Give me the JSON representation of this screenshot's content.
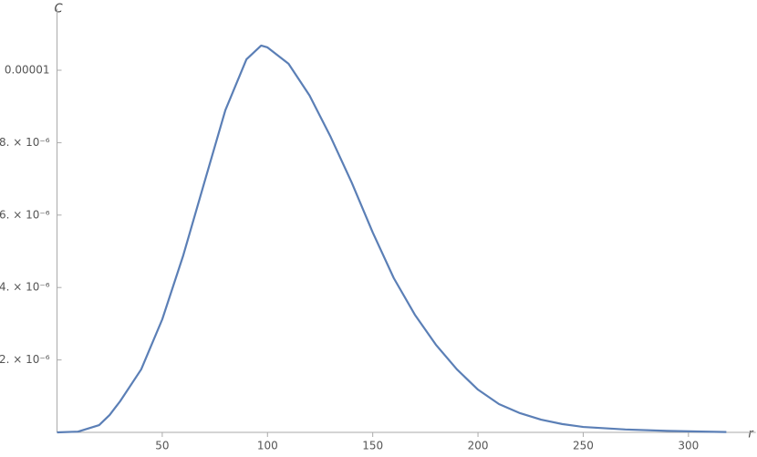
{
  "chart_data": {
    "type": "line",
    "x_label": "r",
    "y_label": "C",
    "x": [
      0,
      10,
      20,
      25,
      30,
      40,
      50,
      60,
      70,
      80,
      90,
      97,
      100,
      110,
      120,
      130,
      140,
      150,
      160,
      170,
      180,
      190,
      200,
      210,
      220,
      230,
      240,
      250,
      270,
      290,
      318
    ],
    "series": [
      {
        "color": "#5b7fb6",
        "values": [
          0,
          2e-08,
          2e-07,
          4.8e-07,
          8.6e-07,
          1.74e-06,
          3.12e-06,
          4.89e-06,
          6.9e-06,
          8.9e-06,
          1.03e-05,
          1.068e-05,
          1.063e-05,
          1.018e-05,
          9.3e-06,
          8.16e-06,
          6.9e-06,
          5.52e-06,
          4.26e-06,
          3.25e-06,
          2.42e-06,
          1.74e-06,
          1.18e-06,
          7.8e-07,
          5.3e-07,
          3.5e-07,
          2.3e-07,
          1.5e-07,
          8e-08,
          4e-08,
          1e-08
        ]
      }
    ],
    "xlim": [
      0,
      332
    ],
    "ylim": [
      0,
      1.17e-05
    ],
    "xticks": [
      50,
      100,
      150,
      200,
      250,
      300
    ],
    "yticks": [
      {
        "value": 2e-06,
        "label": "2. × 10⁻⁶"
      },
      {
        "value": 4e-06,
        "label": "4. × 10⁻⁶"
      },
      {
        "value": 6e-06,
        "label": "6. × 10⁻⁶"
      },
      {
        "value": 8e-06,
        "label": "8. × 10⁻⁶"
      },
      1e-05
    ],
    "grid": false
  }
}
